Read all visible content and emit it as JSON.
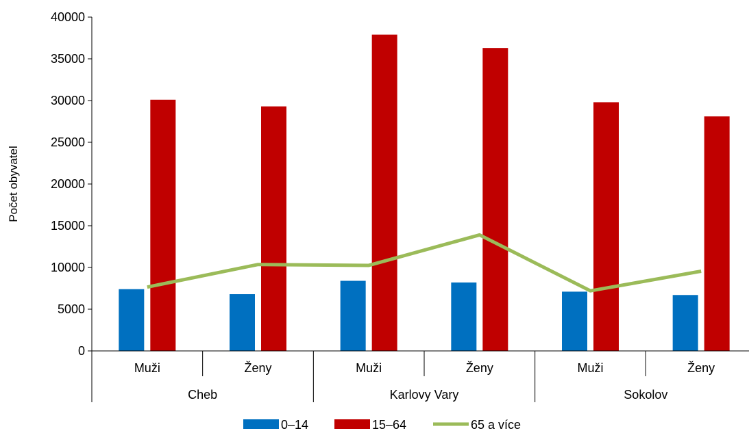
{
  "chart_data": {
    "type": "bar",
    "title": "",
    "xlabel": "",
    "ylabel": "Počet obyvatel",
    "ylim": [
      0,
      40000
    ],
    "yticks": [
      0,
      5000,
      10000,
      15000,
      20000,
      25000,
      30000,
      35000,
      40000
    ],
    "groups": [
      {
        "label": "Cheb",
        "categories": [
          "Muži",
          "Ženy"
        ]
      },
      {
        "label": "Karlovy Vary",
        "categories": [
          "Muži",
          "Ženy"
        ]
      },
      {
        "label": "Sokolov",
        "categories": [
          "Muži",
          "Ženy"
        ]
      }
    ],
    "series": [
      {
        "name": "0–14",
        "type": "bar",
        "color": "#0070C0",
        "values": [
          7400,
          6800,
          8400,
          8200,
          7100,
          6700
        ]
      },
      {
        "name": "15–64",
        "type": "bar",
        "color": "#C00000",
        "values": [
          30100,
          29300,
          37900,
          36300,
          29800,
          28100
        ]
      },
      {
        "name": "65 a více",
        "type": "line",
        "color": "#9BBB59",
        "values": [
          7650,
          10350,
          10250,
          13900,
          7200,
          9550
        ]
      }
    ],
    "grid": false,
    "legend_position": "bottom"
  }
}
